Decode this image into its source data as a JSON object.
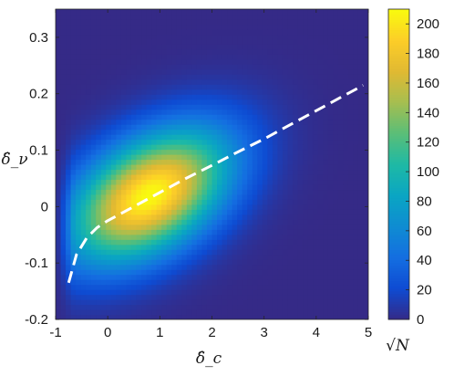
{
  "chart_data": {
    "type": "heatmap",
    "title": "",
    "xlabel": "δ̂_c",
    "ylabel": "δ̂_ν",
    "xlim": [
      -1,
      5
    ],
    "ylim": [
      -0.2,
      0.35
    ],
    "x_ticks": [
      "-1",
      "0",
      "1",
      "2",
      "3",
      "4",
      "5"
    ],
    "y_ticks": [
      "-0.2",
      "-0.1",
      "0",
      "0.1",
      "0.2",
      "0.3"
    ],
    "x_tick_values": [
      -1,
      0,
      1,
      2,
      3,
      4,
      5
    ],
    "y_tick_values": [
      -0.2,
      -0.1,
      0,
      0.1,
      0.2,
      0.3
    ],
    "colormap": "parula",
    "colorbar": {
      "label": "√N",
      "range": [
        0,
        210
      ],
      "ticks": [
        "0",
        "20",
        "40",
        "60",
        "80",
        "100",
        "120",
        "140",
        "160",
        "180",
        "200"
      ],
      "tick_values": [
        0,
        20,
        40,
        60,
        80,
        100,
        120,
        140,
        160,
        180,
        200
      ]
    },
    "density_peak": {
      "x": 0.8,
      "y": 0.02,
      "value": 210
    },
    "fit_curve": {
      "style": "dashed",
      "color": "#ffffff",
      "x": [
        -0.75,
        -0.6,
        -0.4,
        -0.2,
        0,
        0.5,
        1,
        1.5,
        2,
        2.5,
        3,
        3.5,
        4,
        4.5,
        4.9
      ],
      "y": [
        -0.135,
        -0.085,
        -0.055,
        -0.037,
        -0.025,
        0.0,
        0.025,
        0.05,
        0.073,
        0.097,
        0.12,
        0.145,
        0.17,
        0.195,
        0.215
      ]
    }
  }
}
